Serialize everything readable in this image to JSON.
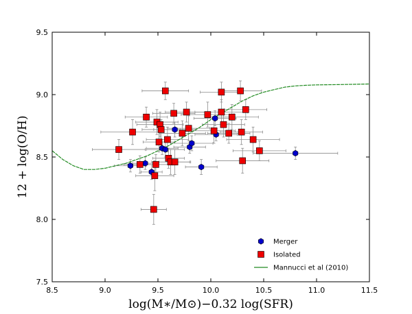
{
  "chart_data": {
    "type": "scatter",
    "xlabel": "log(M∗/M⊙)−0.32 log(SFR)",
    "ylabel": "12 + log(O/H)",
    "xlim": [
      8.5,
      11.5
    ],
    "ylim": [
      7.5,
      9.5
    ],
    "xticks": [
      "8.5",
      "9.0",
      "9.5",
      "10.0",
      "10.5",
      "11.0",
      "11.5"
    ],
    "yticks": [
      "7.5",
      "8.0",
      "8.5",
      "9.0",
      "9.5"
    ],
    "legend_position": "lower-right",
    "series": [
      {
        "name": "Merger",
        "marker": "hexagon",
        "color": "#0000cc",
        "points": [
          {
            "x": 9.24,
            "y": 8.43,
            "xerr": 0.15,
            "yerr": 0.05
          },
          {
            "x": 9.38,
            "y": 8.45,
            "xerr": 0.12,
            "yerr": 0.05
          },
          {
            "x": 9.44,
            "y": 8.38,
            "xerr": 0.1,
            "yerr": 0.06
          },
          {
            "x": 9.54,
            "y": 8.57,
            "xerr": 0.15,
            "yerr": 0.05
          },
          {
            "x": 9.57,
            "y": 8.56,
            "xerr": 0.18,
            "yerr": 0.06
          },
          {
            "x": 9.66,
            "y": 8.72,
            "xerr": 0.2,
            "yerr": 0.06
          },
          {
            "x": 9.8,
            "y": 8.58,
            "xerr": 0.15,
            "yerr": 0.05
          },
          {
            "x": 9.82,
            "y": 8.61,
            "xerr": 0.2,
            "yerr": 0.06
          },
          {
            "x": 9.91,
            "y": 8.42,
            "xerr": 0.15,
            "yerr": 0.06
          },
          {
            "x": 10.04,
            "y": 8.81,
            "xerr": 0.2,
            "yerr": 0.06
          },
          {
            "x": 10.05,
            "y": 8.68,
            "xerr": 0.2,
            "yerr": 0.05
          },
          {
            "x": 10.8,
            "y": 8.53,
            "xerr": 0.4,
            "yerr": 0.05
          }
        ]
      },
      {
        "name": "Isolated",
        "marker": "square",
        "color": "#ee0000",
        "points": [
          {
            "x": 9.13,
            "y": 8.56,
            "xerr": 0.25,
            "yerr": 0.08
          },
          {
            "x": 9.26,
            "y": 8.7,
            "xerr": 0.3,
            "yerr": 0.1
          },
          {
            "x": 9.33,
            "y": 8.44,
            "xerr": 0.15,
            "yerr": 0.07
          },
          {
            "x": 9.39,
            "y": 8.82,
            "xerr": 0.2,
            "yerr": 0.08
          },
          {
            "x": 9.46,
            "y": 8.08,
            "xerr": 0.12,
            "yerr": 0.12
          },
          {
            "x": 9.47,
            "y": 8.35,
            "xerr": 0.18,
            "yerr": 0.12
          },
          {
            "x": 9.48,
            "y": 8.44,
            "xerr": 0.18,
            "yerr": 0.08
          },
          {
            "x": 9.49,
            "y": 8.78,
            "xerr": 0.2,
            "yerr": 0.1
          },
          {
            "x": 9.51,
            "y": 8.62,
            "xerr": 0.15,
            "yerr": 0.08
          },
          {
            "x": 9.52,
            "y": 8.76,
            "xerr": 0.22,
            "yerr": 0.1
          },
          {
            "x": 9.53,
            "y": 8.72,
            "xerr": 0.18,
            "yerr": 0.08
          },
          {
            "x": 9.57,
            "y": 9.03,
            "xerr": 0.22,
            "yerr": 0.07
          },
          {
            "x": 9.59,
            "y": 8.64,
            "xerr": 0.2,
            "yerr": 0.1
          },
          {
            "x": 9.6,
            "y": 8.49,
            "xerr": 0.15,
            "yerr": 0.08
          },
          {
            "x": 9.62,
            "y": 8.46,
            "xerr": 0.18,
            "yerr": 0.1
          },
          {
            "x": 9.65,
            "y": 8.85,
            "xerr": 0.2,
            "yerr": 0.08
          },
          {
            "x": 9.66,
            "y": 8.46,
            "xerr": 0.15,
            "yerr": 0.1
          },
          {
            "x": 9.73,
            "y": 8.69,
            "xerr": 0.22,
            "yerr": 0.1
          },
          {
            "x": 9.77,
            "y": 8.86,
            "xerr": 0.2,
            "yerr": 0.08
          },
          {
            "x": 9.79,
            "y": 8.73,
            "xerr": 0.2,
            "yerr": 0.1
          },
          {
            "x": 9.97,
            "y": 8.84,
            "xerr": 0.25,
            "yerr": 0.1
          },
          {
            "x": 10.03,
            "y": 8.71,
            "xerr": 0.2,
            "yerr": 0.1
          },
          {
            "x": 10.1,
            "y": 9.02,
            "xerr": 0.2,
            "yerr": 0.08
          },
          {
            "x": 10.1,
            "y": 8.86,
            "xerr": 0.25,
            "yerr": 0.1
          },
          {
            "x": 10.12,
            "y": 8.76,
            "xerr": 0.2,
            "yerr": 0.1
          },
          {
            "x": 10.17,
            "y": 8.69,
            "xerr": 0.2,
            "yerr": 0.08
          },
          {
            "x": 10.2,
            "y": 8.82,
            "xerr": 0.25,
            "yerr": 0.1
          },
          {
            "x": 10.28,
            "y": 9.03,
            "xerr": 0.2,
            "yerr": 0.08
          },
          {
            "x": 10.29,
            "y": 8.7,
            "xerr": 0.2,
            "yerr": 0.1
          },
          {
            "x": 10.3,
            "y": 8.47,
            "xerr": 0.25,
            "yerr": 0.1
          },
          {
            "x": 10.33,
            "y": 8.88,
            "xerr": 0.2,
            "yerr": 0.08
          },
          {
            "x": 10.4,
            "y": 8.64,
            "xerr": 0.25,
            "yerr": 0.1
          },
          {
            "x": 10.46,
            "y": 8.55,
            "xerr": 0.25,
            "yerr": 0.08
          }
        ]
      },
      {
        "name": "Mannucci et al (2010)",
        "type": "line",
        "color": "#228b22",
        "x": [
          8.5,
          8.6,
          8.7,
          8.8,
          8.9,
          9.0,
          9.1,
          9.2,
          9.3,
          9.4,
          9.5,
          9.6,
          9.7,
          9.8,
          9.9,
          10.0,
          10.1,
          10.2,
          10.3,
          10.4,
          10.5,
          10.6,
          10.7,
          10.8,
          10.9,
          11.0,
          11.2,
          11.5
        ],
        "y": [
          8.55,
          8.48,
          8.43,
          8.4,
          8.4,
          8.41,
          8.43,
          8.45,
          8.48,
          8.51,
          8.55,
          8.59,
          8.64,
          8.69,
          8.74,
          8.8,
          8.85,
          8.9,
          8.95,
          8.99,
          9.02,
          9.04,
          9.06,
          9.07,
          9.075,
          9.078,
          9.08,
          9.085
        ]
      }
    ],
    "legend": [
      {
        "label": "Merger",
        "series": 0
      },
      {
        "label": "Isolated",
        "series": 1
      },
      {
        "label": "Mannucci et al (2010)",
        "series": 2
      }
    ]
  }
}
